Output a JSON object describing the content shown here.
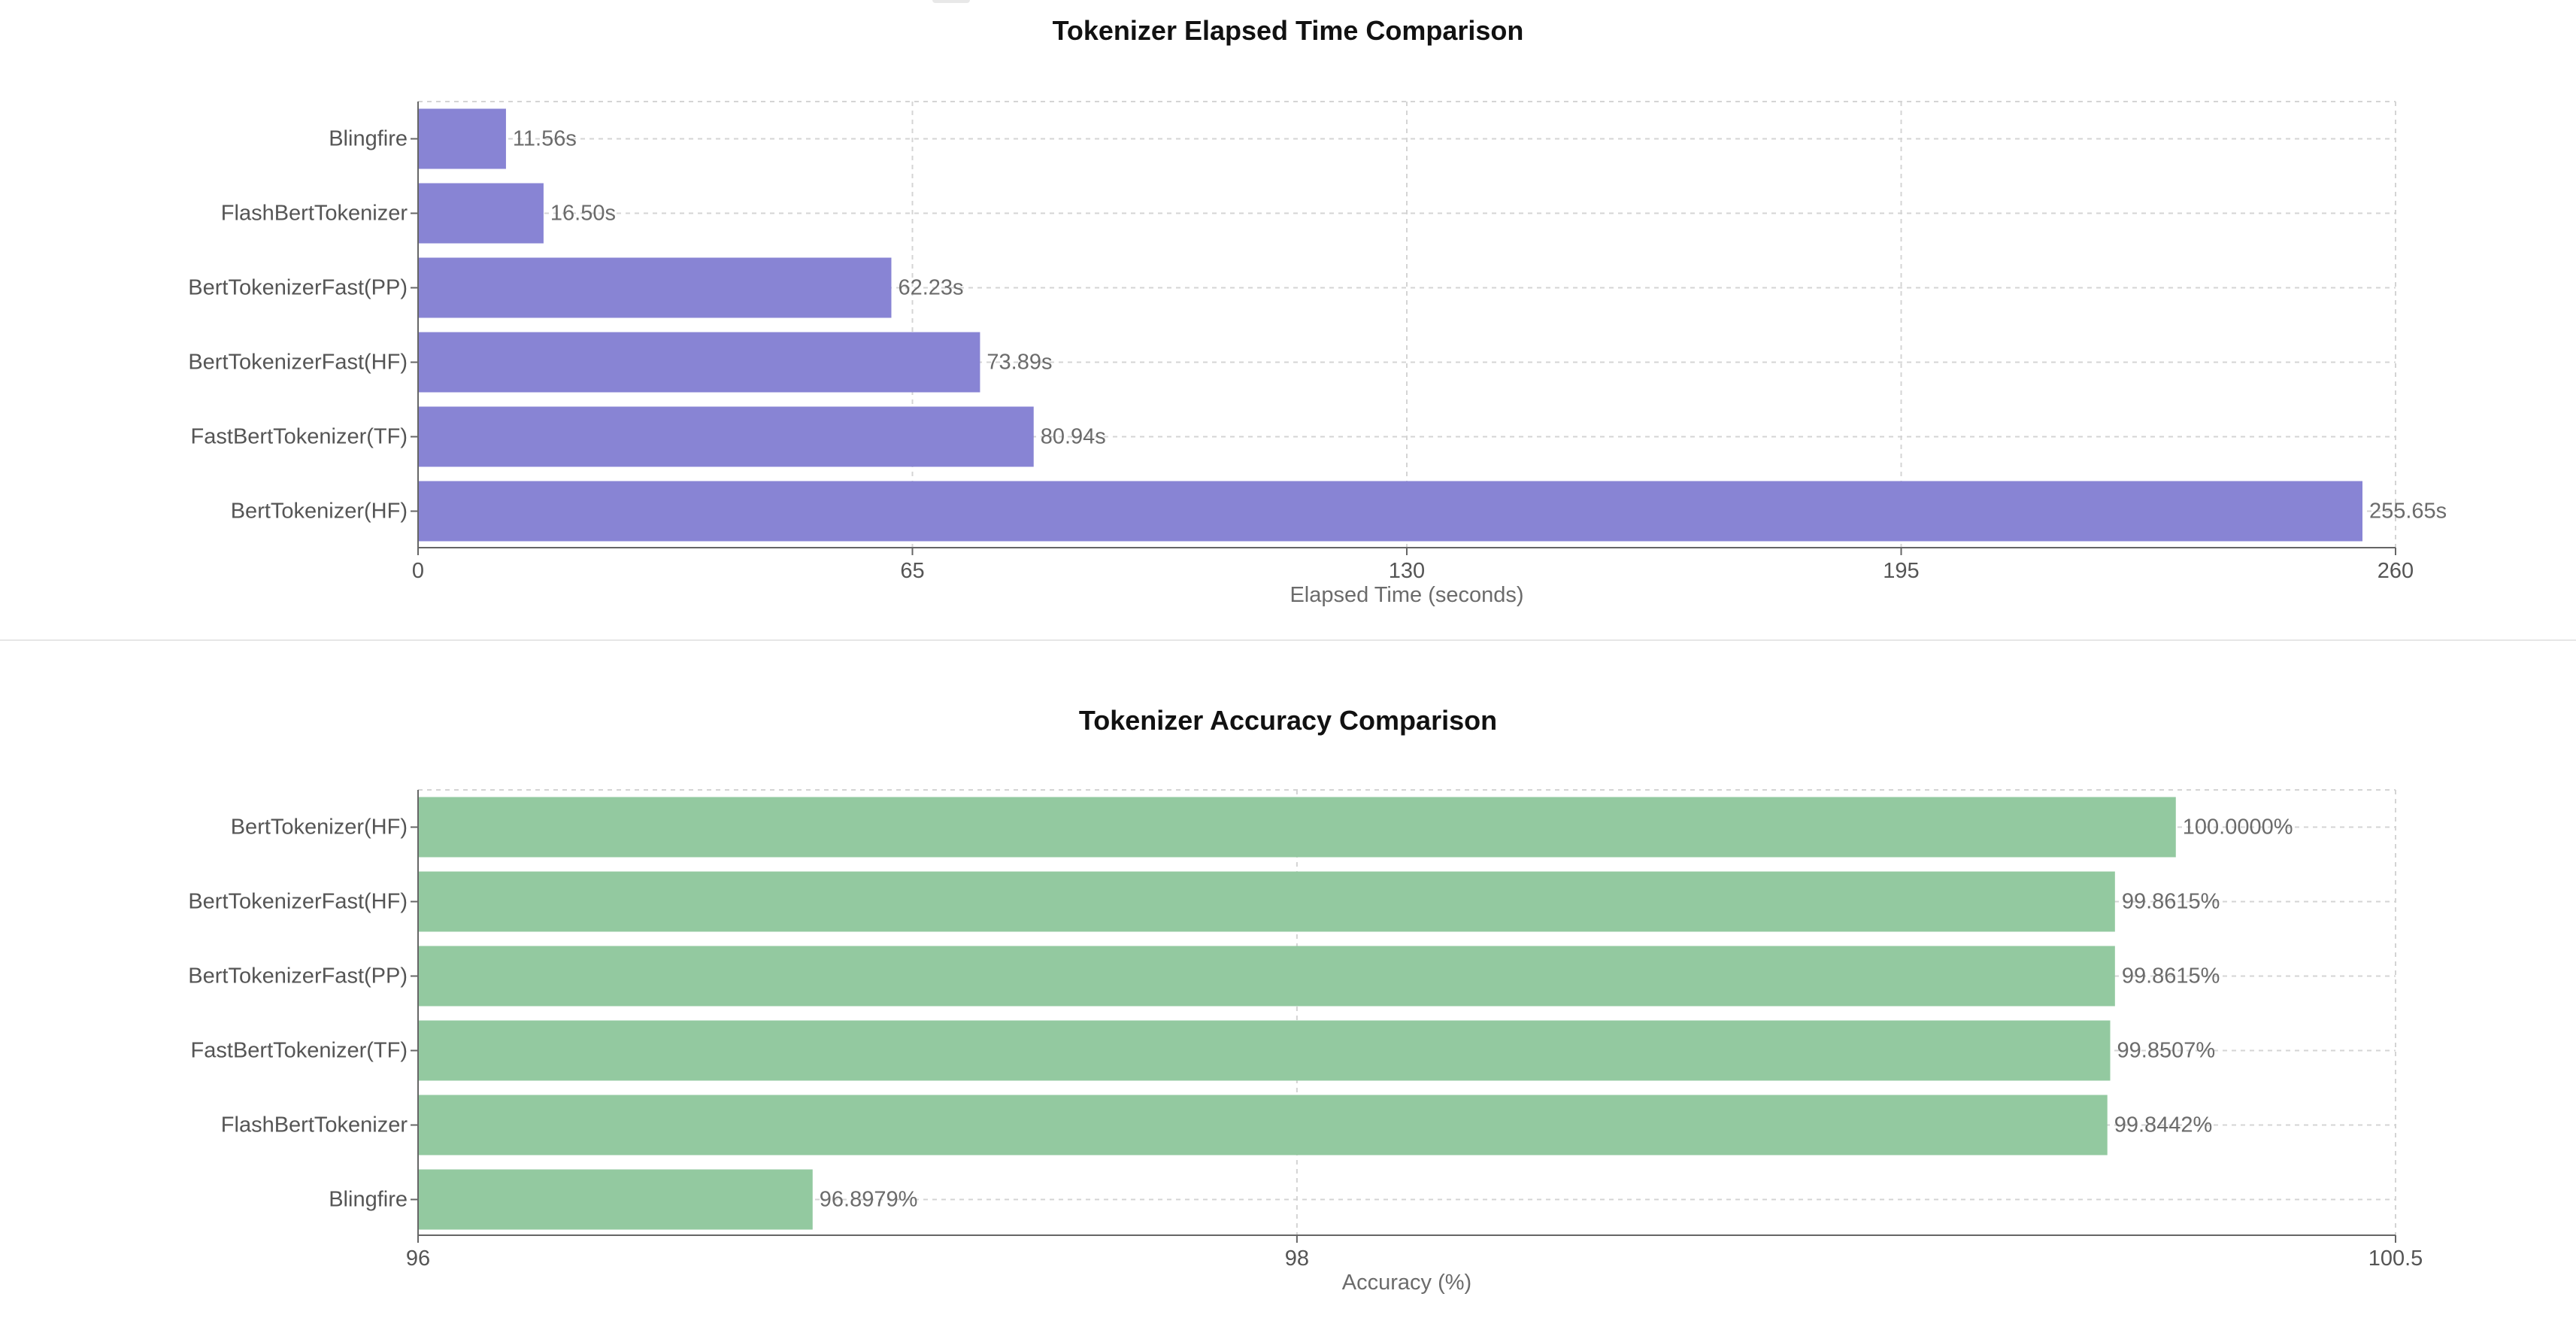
{
  "chart_data": [
    {
      "type": "bar",
      "orientation": "horizontal",
      "title": "Tokenizer Elapsed Time Comparison",
      "xlabel": "Elapsed Time (seconds)",
      "ylabel": "",
      "categories": [
        "Blingfire",
        "FlashBertTokenizer",
        "BertTokenizerFast(PP)",
        "BertTokenizerFast(HF)",
        "FastBertTokenizer(TF)",
        "BertTokenizer(HF)"
      ],
      "values": [
        11.56,
        16.5,
        62.23,
        73.89,
        80.94,
        255.65
      ],
      "value_labels": [
        "11.56s",
        "16.50s",
        "62.23s",
        "73.89s",
        "80.94s",
        "255.65s"
      ],
      "xlim": [
        0,
        260
      ],
      "xticks": [
        0,
        65,
        130,
        195,
        260
      ],
      "xtick_labels": [
        "0",
        "65",
        "130",
        "195",
        "260"
      ],
      "grid": true,
      "color": "#8884d4"
    },
    {
      "type": "bar",
      "orientation": "horizontal",
      "title": "Tokenizer Accuracy Comparison",
      "xlabel": "Accuracy (%)",
      "ylabel": "",
      "categories": [
        "BertTokenizer(HF)",
        "BertTokenizerFast(HF)",
        "BertTokenizerFast(PP)",
        "FastBertTokenizer(TF)",
        "FlashBertTokenizer",
        "Blingfire"
      ],
      "values": [
        100.0,
        99.8615,
        99.8615,
        99.8507,
        99.8442,
        96.8979
      ],
      "value_labels": [
        "100.0000%",
        "99.8615%",
        "99.8615%",
        "99.8507%",
        "99.8442%",
        "96.8979%"
      ],
      "xlim": [
        96,
        100.5
      ],
      "xticks": [
        96,
        98,
        100.5
      ],
      "xtick_labels": [
        "96",
        "98",
        "100.5"
      ],
      "grid": true,
      "color": "#93c9a0"
    }
  ]
}
